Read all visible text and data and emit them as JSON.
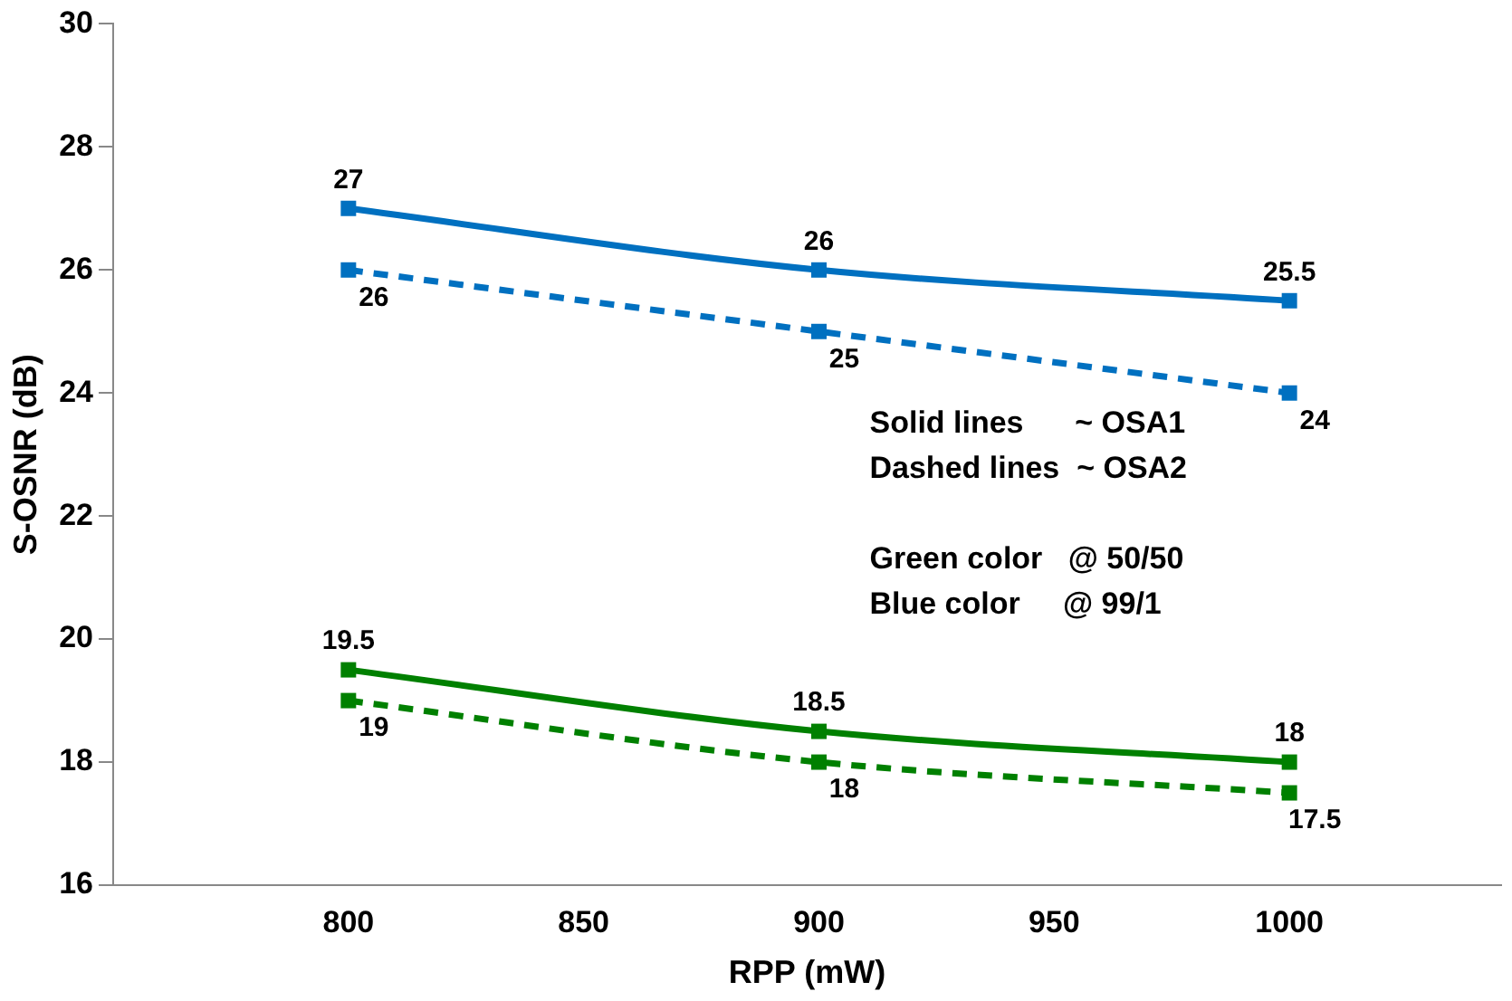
{
  "chart_data": {
    "type": "line",
    "xlabel": "RPP (mW)",
    "ylabel": "S-OSNR (dB)",
    "x": [
      800,
      900,
      1000
    ],
    "xlim": [
      750,
      1045
    ],
    "xticks": [
      800,
      850,
      900,
      950,
      1000
    ],
    "ylim": [
      16,
      30
    ],
    "yticks": [
      16,
      18,
      20,
      22,
      24,
      26,
      28,
      30
    ],
    "grid": false,
    "legend": false,
    "marker": "square",
    "data_labels": true,
    "series": [
      {
        "color": "#0070c0",
        "values": [
          27,
          26,
          25.5
        ],
        "line_style": "solid"
      },
      {
        "color": "#0070c0",
        "values": [
          26,
          25,
          24
        ],
        "line_style": "dashed"
      },
      {
        "color": "#008000",
        "values": [
          19.5,
          18.5,
          18
        ],
        "line_style": "solid"
      },
      {
        "color": "#008000",
        "values": [
          19,
          18,
          17.5
        ],
        "line_style": "dashed"
      }
    ],
    "annotations": [
      "Solid lines      ~ OSA1",
      "Dashed lines  ~ OSA2",
      "Green color   @ 50/50",
      "Blue color     @ 99/1"
    ]
  }
}
